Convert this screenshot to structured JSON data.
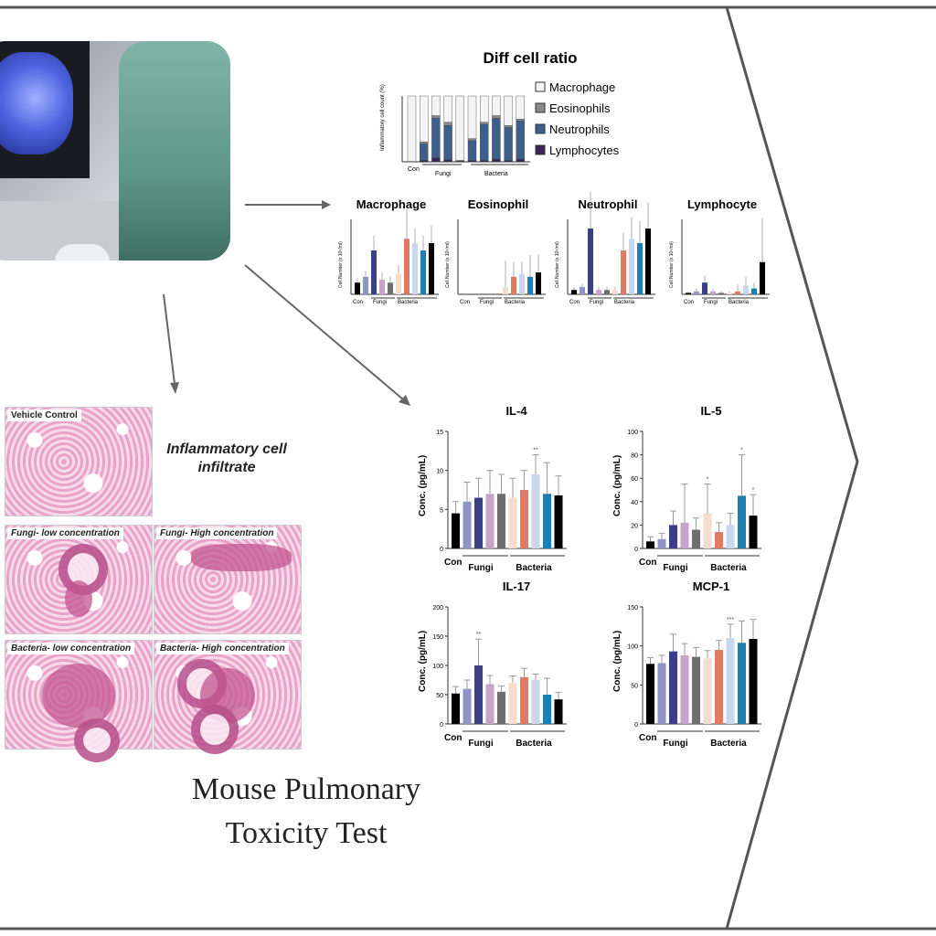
{
  "diff": {
    "title": "Diff cell ratio",
    "ylabel": "Inflammatory cell count (%)",
    "groups": [
      "Con",
      "Fungi",
      "Bacteria"
    ],
    "legend": [
      "Macrophage",
      "Eosinophils",
      "Neutrophils",
      "Lymphocytes"
    ]
  },
  "small": {
    "ylabel": "Cell Number (x 10⁴/ml)",
    "titles": [
      "Macrophage",
      "Eosinophil",
      "Neutrophil",
      "Lymphocyte"
    ],
    "groups": [
      "Con",
      "Fungi",
      "Bacteria"
    ]
  },
  "histology": {
    "vehicle": "Vehicle Control",
    "fungi_low": "Fungi- low concentration",
    "fungi_high": "Fungi- High concentration",
    "bacteria_low": "Bacteria- low concentration",
    "bacteria_high": "Bacteria- High concentration",
    "annotation": "Inflammatory cell infiltrate"
  },
  "main_text": "Mouse Pulmonary Toxicity Test",
  "colors": {
    "con": "#000000",
    "fungi": [
      "#8e94c8",
      "#3b3f86",
      "#c9a3cc",
      "#6e6e6e"
    ],
    "bacteria": [
      "#f2ddcf",
      "#e07b63",
      "#c9d7ee",
      "#1c7fb0"
    ],
    "border": "#555555"
  },
  "chart_data": [
    {
      "type": "bar",
      "title": "IL-4",
      "ylabel": "Conc. (pg/mL)",
      "ylim": [
        0,
        15
      ],
      "yticks": [
        "0",
        "5",
        "10",
        "15"
      ],
      "groups": [
        "Con",
        "Fungi",
        "Bacteria"
      ],
      "values": [
        4.5,
        6.0,
        6.5,
        7.0,
        7.0,
        6.5,
        7.5,
        9.5,
        7.0,
        6.8
      ],
      "errors": [
        1.5,
        2.5,
        2.5,
        3.0,
        2.5,
        2.5,
        2.5,
        2.5,
        4.0,
        2.5
      ],
      "stars": [
        "",
        "",
        "",
        "",
        "",
        "",
        "",
        "**",
        "",
        ""
      ]
    },
    {
      "type": "bar",
      "title": "IL-5",
      "ylabel": "Conc. (pg/mL)",
      "ylim": [
        0,
        100
      ],
      "yticks": [
        "0",
        "20",
        "40",
        "60",
        "80",
        "100"
      ],
      "groups": [
        "Con",
        "Fungi",
        "Bacteria"
      ],
      "values": [
        6,
        8,
        20,
        22,
        16,
        30,
        14,
        20,
        45,
        28
      ],
      "errors": [
        4,
        5,
        12,
        33,
        10,
        25,
        8,
        10,
        35,
        18
      ],
      "stars": [
        "",
        "",
        "",
        "",
        "",
        "*",
        "",
        "",
        "*",
        "*"
      ]
    },
    {
      "type": "bar",
      "title": "IL-17",
      "ylabel": "Conc. (pg/mL)",
      "ylim": [
        0,
        200
      ],
      "yticks": [
        "0",
        "50",
        "100",
        "150",
        "200"
      ],
      "groups": [
        "Con",
        "Fungi",
        "Bacteria"
      ],
      "values": [
        52,
        60,
        100,
        68,
        55,
        70,
        80,
        75,
        50,
        42
      ],
      "errors": [
        12,
        15,
        45,
        15,
        10,
        12,
        15,
        10,
        28,
        12
      ],
      "stars": [
        "",
        "",
        "**",
        "",
        "",
        "",
        "",
        "",
        "",
        ""
      ]
    },
    {
      "type": "bar",
      "title": "MCP-1",
      "ylabel": "Conc. (pg/mL)",
      "ylim": [
        0,
        150
      ],
      "yticks": [
        "0",
        "50",
        "100",
        "150"
      ],
      "groups": [
        "Con",
        "Fungi",
        "Bacteria"
      ],
      "values": [
        77,
        78,
        93,
        88,
        86,
        84,
        95,
        110,
        104,
        109
      ],
      "errors": [
        8,
        10,
        22,
        15,
        12,
        10,
        12,
        18,
        28,
        25
      ],
      "stars": [
        "",
        "",
        "",
        "",
        "",
        "",
        "",
        "***",
        "",
        ""
      ]
    }
  ]
}
